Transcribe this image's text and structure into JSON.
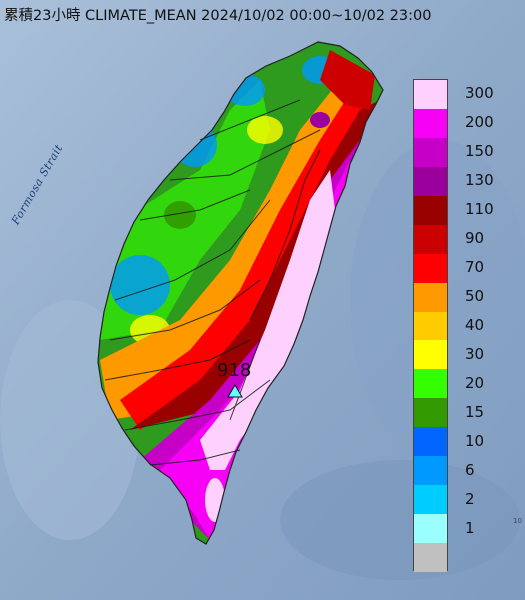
{
  "title": "累積23小時 CLIMATE_MEAN 2024/10/02 00:00~10/02 23:00",
  "strait_label": "Formosa Strait",
  "station_max": "918",
  "corner_mark": "10",
  "legend": [
    {
      "label": "300",
      "color": "#fdd0fd"
    },
    {
      "label": "200",
      "color": "#f600f6"
    },
    {
      "label": "150",
      "color": "#c600c6"
    },
    {
      "label": "130",
      "color": "#9c009c"
    },
    {
      "label": "110",
      "color": "#990000"
    },
    {
      "label": "90",
      "color": "#cc0000"
    },
    {
      "label": "70",
      "color": "#ff0000"
    },
    {
      "label": "50",
      "color": "#ff9900"
    },
    {
      "label": "40",
      "color": "#ffcc00"
    },
    {
      "label": "30",
      "color": "#ffff00"
    },
    {
      "label": "20",
      "color": "#33ff00"
    },
    {
      "label": "15",
      "color": "#339900"
    },
    {
      "label": "10",
      "color": "#0066ff"
    },
    {
      "label": "6",
      "color": "#0099ff"
    },
    {
      "label": "2",
      "color": "#00ccff"
    },
    {
      "label": "1",
      "color": "#99ffff"
    },
    {
      "label": "",
      "color": "#c0c0c0"
    }
  ]
}
